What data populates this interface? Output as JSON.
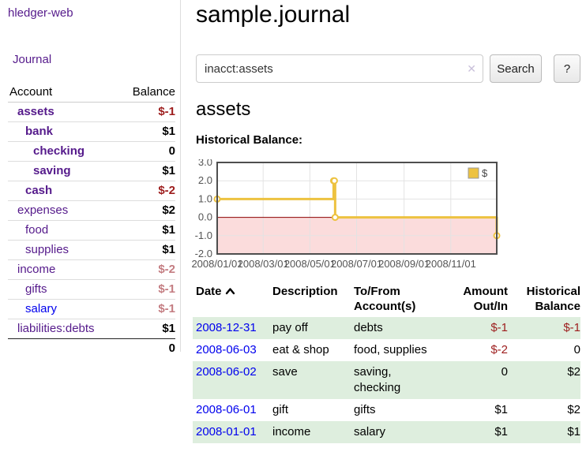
{
  "app": {
    "title": "hledger-web",
    "journal_link": "Journal"
  },
  "sidebar": {
    "columns": {
      "account": "Account",
      "balance": "Balance"
    },
    "accounts": [
      {
        "name": "assets",
        "balance": "$-1"
      },
      {
        "name": "bank",
        "balance": "$1"
      },
      {
        "name": "checking",
        "balance": "0"
      },
      {
        "name": "saving",
        "balance": "$1"
      },
      {
        "name": "cash",
        "balance": "$-2"
      },
      {
        "name": "expenses",
        "balance": "$2"
      },
      {
        "name": "food",
        "balance": "$1"
      },
      {
        "name": "supplies",
        "balance": "$1"
      },
      {
        "name": "income",
        "balance": "$-2"
      },
      {
        "name": "gifts",
        "balance": "$-1"
      },
      {
        "name": "salary",
        "balance": "$-1"
      },
      {
        "name": "liabilities:debts",
        "balance": "$1"
      }
    ],
    "total": "0"
  },
  "main": {
    "title": "sample.journal",
    "search": {
      "value": "inacct:assets",
      "clear_icon": "✕",
      "submit_label": "Search",
      "help_label": "?"
    },
    "account_heading": "assets",
    "chart_caption": "Historical Balance:"
  },
  "chart_data": {
    "type": "line",
    "title": "Historical Balance",
    "step": true,
    "series": [
      {
        "name": "$",
        "color": "#EDC240",
        "points": [
          [
            "2008/01/01",
            1
          ],
          [
            "2008/06/01",
            2
          ],
          [
            "2008/06/02",
            2
          ],
          [
            "2008/06/03",
            0
          ],
          [
            "2008/12/31",
            -1
          ]
        ]
      }
    ],
    "xlim": [
      "2008/01/01",
      "2008/12/31"
    ],
    "ylim": [
      -2,
      3
    ],
    "y_ticks": [
      "3.0",
      "2.0",
      "1.0",
      "0.0",
      "-1.0",
      "-2.0"
    ],
    "y_tick_values": [
      3,
      2,
      1,
      0,
      -1,
      -2
    ],
    "x_ticks": [
      "2008/01/01",
      "2008/03/01",
      "2008/05/01",
      "2008/07/01",
      "2008/09/01",
      "2008/11/01"
    ],
    "grid": true,
    "legend_position": "top-right",
    "legend_label": "$",
    "negative_region_fill": "#fbdcdc",
    "zero_line_color": "#8b0000"
  },
  "register": {
    "headers": {
      "date": "Date",
      "description": "Description",
      "account": "To/From Account(s)",
      "amount": "Amount Out/In",
      "balance": "Historical Balance"
    },
    "sort_icon": "chevron-up",
    "rows": [
      {
        "date": "2008-12-31",
        "description": "pay off",
        "account": "debts",
        "amount": "$-1",
        "balance": "$-1"
      },
      {
        "date": "2008-06-03",
        "description": "eat & shop",
        "account": "food, supplies",
        "amount": "$-2",
        "balance": "0"
      },
      {
        "date": "2008-06-02",
        "description": "save",
        "account": "saving, checking",
        "amount": "0",
        "balance": "$2"
      },
      {
        "date": "2008-06-01",
        "description": "gift",
        "account": "gifts",
        "amount": "$1",
        "balance": "$2"
      },
      {
        "date": "2008-01-01",
        "description": "income",
        "account": "salary",
        "amount": "$1",
        "balance": "$1"
      }
    ]
  }
}
